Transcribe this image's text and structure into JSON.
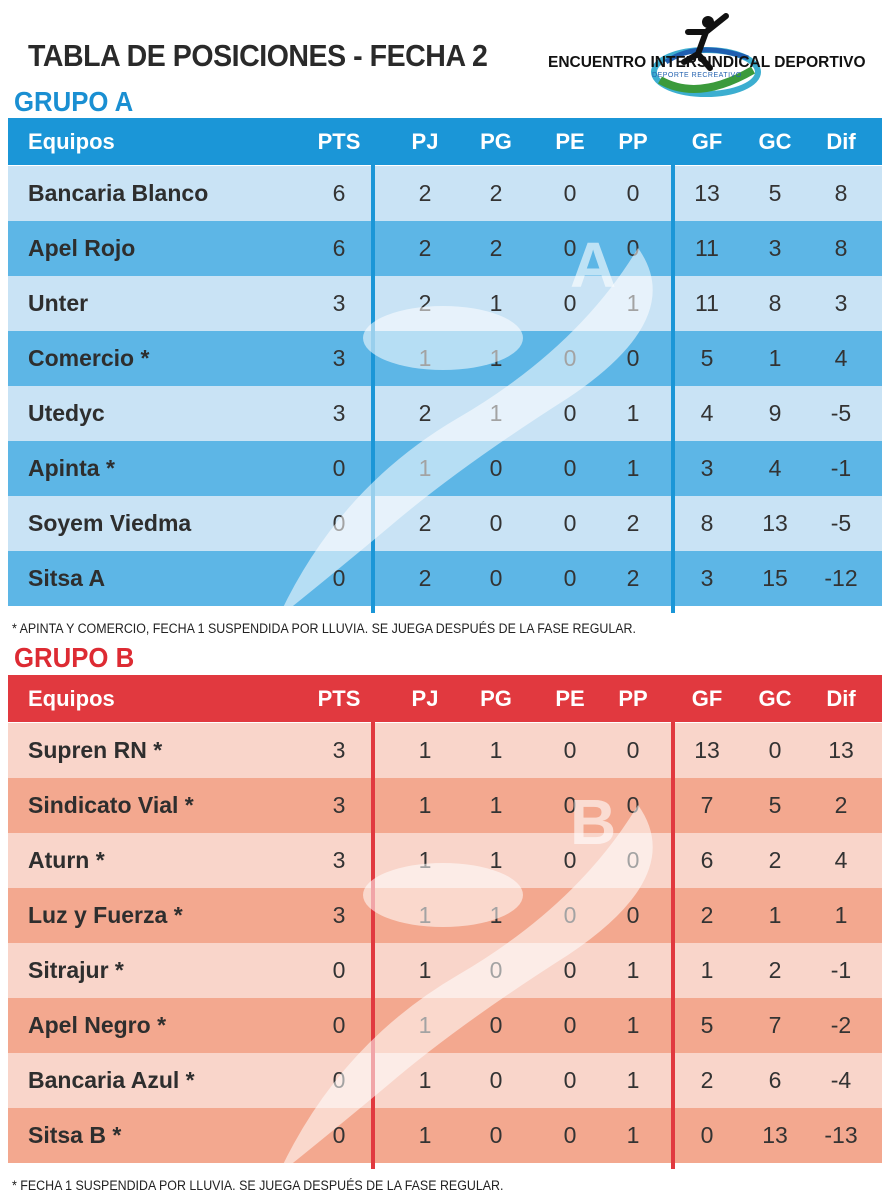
{
  "title": "TABLA DE POSICIONES - FECHA 2",
  "logo": {
    "left": "ENCUENTRO",
    "middle": "INTERSINDICAL",
    "right": "DEPORTIVO",
    "sub": "DEPORTE RECREATIVO"
  },
  "columns": [
    "Equipos",
    "PTS",
    "PJ",
    "PG",
    "PE",
    "PP",
    "GF",
    "GC",
    "Dif"
  ],
  "colors": {
    "group_a_header": "#1b96d7",
    "group_a_light": "#c9e3f5",
    "group_a_dark": "#5db6e6",
    "group_b_header": "#e1393f",
    "group_b_light": "#f9d5ca",
    "group_b_dark": "#f3a88f"
  },
  "group_a": {
    "title": "GRUPO A",
    "watermark_letter": "A",
    "rows": [
      [
        "Bancaria Blanco",
        "6",
        "2",
        "2",
        "0",
        "0",
        "13",
        "5",
        "8"
      ],
      [
        "Apel Rojo",
        "6",
        "2",
        "2",
        "0",
        "0",
        "11",
        "3",
        "8"
      ],
      [
        "Unter",
        "3",
        "2",
        "1",
        "0",
        "1",
        "11",
        "8",
        "3"
      ],
      [
        "Comercio *",
        "3",
        "1",
        "1",
        "0",
        "0",
        "5",
        "1",
        "4"
      ],
      [
        "Utedyc",
        "3",
        "2",
        "1",
        "0",
        "1",
        "4",
        "9",
        "-5"
      ],
      [
        "Apinta *",
        "0",
        "1",
        "0",
        "0",
        "1",
        "3",
        "4",
        "-1"
      ],
      [
        "Soyem Viedma",
        "0",
        "2",
        "0",
        "0",
        "2",
        "8",
        "13",
        "-5"
      ],
      [
        "Sitsa A",
        "0",
        "2",
        "0",
        "0",
        "2",
        "3",
        "15",
        "-12"
      ]
    ],
    "note": "* APINTA Y COMERCIO, FECHA 1 SUSPENDIDA POR LLUVIA.  SE JUEGA DESPUÉS DE LA FASE REGULAR."
  },
  "group_b": {
    "title": "GRUPO B",
    "watermark_letter": "B",
    "rows": [
      [
        "Supren RN *",
        "3",
        "1",
        "1",
        "0",
        "0",
        "13",
        "0",
        "13"
      ],
      [
        "Sindicato Vial *",
        "3",
        "1",
        "1",
        "0",
        "0",
        "7",
        "5",
        "2"
      ],
      [
        "Aturn *",
        "3",
        "1",
        "1",
        "0",
        "0",
        "6",
        "2",
        "4"
      ],
      [
        "Luz y Fuerza *",
        "3",
        "1",
        "1",
        "0",
        "0",
        "2",
        "1",
        "1"
      ],
      [
        "Sitrajur *",
        "0",
        "1",
        "0",
        "0",
        "1",
        "1",
        "2",
        "-1"
      ],
      [
        "Apel Negro *",
        "0",
        "1",
        "0",
        "0",
        "1",
        "5",
        "7",
        "-2"
      ],
      [
        "Bancaria Azul *",
        "0",
        "1",
        "0",
        "0",
        "1",
        "2",
        "6",
        "-4"
      ],
      [
        "Sitsa B *",
        "0",
        "1",
        "0",
        "0",
        "1",
        "0",
        "13",
        "-13"
      ]
    ],
    "note": "* FECHA 1 SUSPENDIDA POR LLUVIA. SE JUEGA DESPUÉS DE LA FASE REGULAR."
  }
}
